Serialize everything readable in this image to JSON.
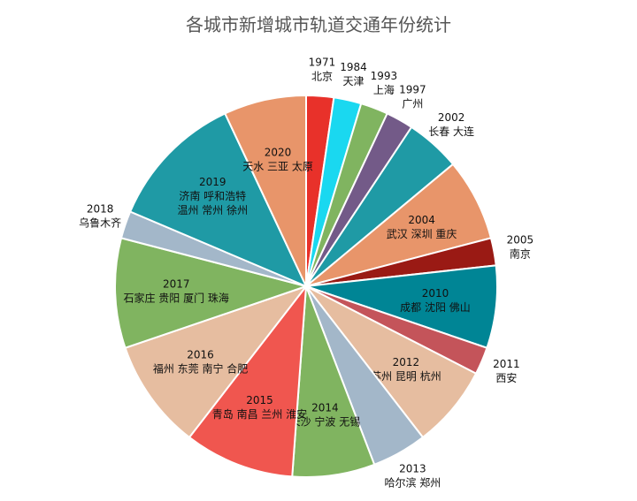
{
  "chart_data": {
    "type": "pie",
    "title": "各城市新增城市轨道交通年份统计",
    "start": "top",
    "direction": "clockwise",
    "slices": [
      {
        "year": "1971",
        "cities": [
          "北京"
        ],
        "value": 1,
        "color": "#e8312a",
        "label": "outside"
      },
      {
        "year": "1984",
        "cities": [
          "天津"
        ],
        "value": 1,
        "color": "#1ad8f0",
        "label": "outside"
      },
      {
        "year": "1993",
        "cities": [
          "上海"
        ],
        "value": 1,
        "color": "#80b460",
        "label": "outside"
      },
      {
        "year": "1997",
        "cities": [
          "广州"
        ],
        "value": 1,
        "color": "#735a88",
        "label": "outside"
      },
      {
        "year": "2002",
        "cities": [
          "长春 大连"
        ],
        "value": 2,
        "color": "#1f9aa5",
        "label": "outside"
      },
      {
        "year": "2004",
        "cities": [
          "武汉 深圳 重庆"
        ],
        "value": 3,
        "color": "#e8956a",
        "label": "inside"
      },
      {
        "year": "2005",
        "cities": [
          "南京"
        ],
        "value": 1,
        "color": "#9a1a14",
        "label": "outside"
      },
      {
        "year": "2010",
        "cities": [
          "成都 沈阳 佛山"
        ],
        "value": 3,
        "color": "#008595",
        "label": "inside"
      },
      {
        "year": "2011",
        "cities": [
          "西安"
        ],
        "value": 1,
        "color": "#c4545a",
        "label": "outside"
      },
      {
        "year": "2012",
        "cities": [
          "苏州 昆明 杭州"
        ],
        "value": 3,
        "color": "#e6bda0",
        "label": "inside"
      },
      {
        "year": "2013",
        "cities": [
          "哈尔滨 郑州"
        ],
        "value": 2,
        "color": "#a3b7c9",
        "label": "outside"
      },
      {
        "year": "2014",
        "cities": [
          "长沙 宁波 无锡"
        ],
        "value": 3,
        "color": "#80b460",
        "label": "inside"
      },
      {
        "year": "2015",
        "cities": [
          "青岛 南昌 兰州 淮安"
        ],
        "value": 4,
        "color": "#f0564f",
        "label": "inside"
      },
      {
        "year": "2016",
        "cities": [
          "福州 东莞 南宁 合肥"
        ],
        "value": 4,
        "color": "#e6bda0",
        "label": "inside"
      },
      {
        "year": "2017",
        "cities": [
          "石家庄 贵阳 厦门 珠海"
        ],
        "value": 4,
        "color": "#80b460",
        "label": "inside"
      },
      {
        "year": "2018",
        "cities": [
          "乌鲁木齐"
        ],
        "value": 1,
        "color": "#a3b7c9",
        "label": "outside"
      },
      {
        "year": "2019",
        "cities": [
          "济南 呼和浩特",
          "温州 常州 徐州"
        ],
        "value": 5,
        "color": "#1f9aa5",
        "label": "inside"
      },
      {
        "year": "2020",
        "cities": [
          "天水 三亚 太原"
        ],
        "value": 3,
        "color": "#e8956a",
        "label": "inside"
      }
    ]
  }
}
